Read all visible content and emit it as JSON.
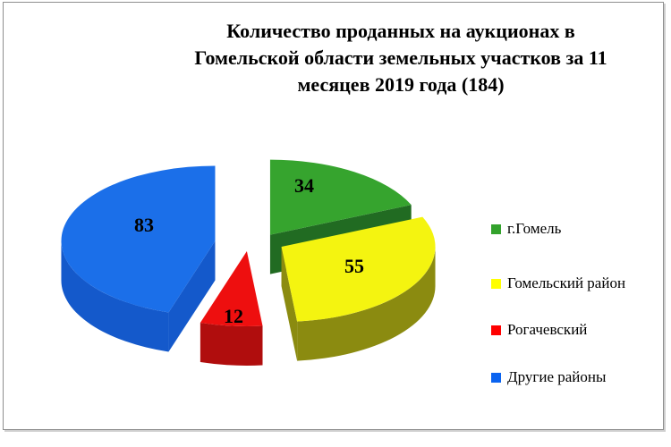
{
  "title": {
    "lines": [
      "Количество проданных на аукционах в",
      "Гомельской области земельных участков за 11",
      "месяцев 2019 года (184)"
    ]
  },
  "chart_data": {
    "type": "pie",
    "style": "3d-exploded",
    "title": "Количество проданных на аукционах в Гомельской области земельных участков за 11 месяцев 2019 года (184)",
    "total": 184,
    "categories": [
      "г.Гомель",
      "Гомельский район",
      "Рогачевский",
      "Другие районы"
    ],
    "values": [
      34,
      55,
      12,
      83
    ],
    "value_labels_visible": true,
    "start_angle_deg": 0,
    "direction": "clockwise",
    "legend_position": "right",
    "slice_colors": [
      "#36a42e",
      "#f4f410",
      "#ee0f0f",
      "#1b6fe9"
    ],
    "slice_side_colors": [
      "#216b22",
      "#8b8b10",
      "#b00d0d",
      "#1459cb"
    ],
    "legend_swatch_colors": [
      "#33a22c",
      "#ffff00",
      "#ff0000",
      "#0a63f0"
    ]
  }
}
